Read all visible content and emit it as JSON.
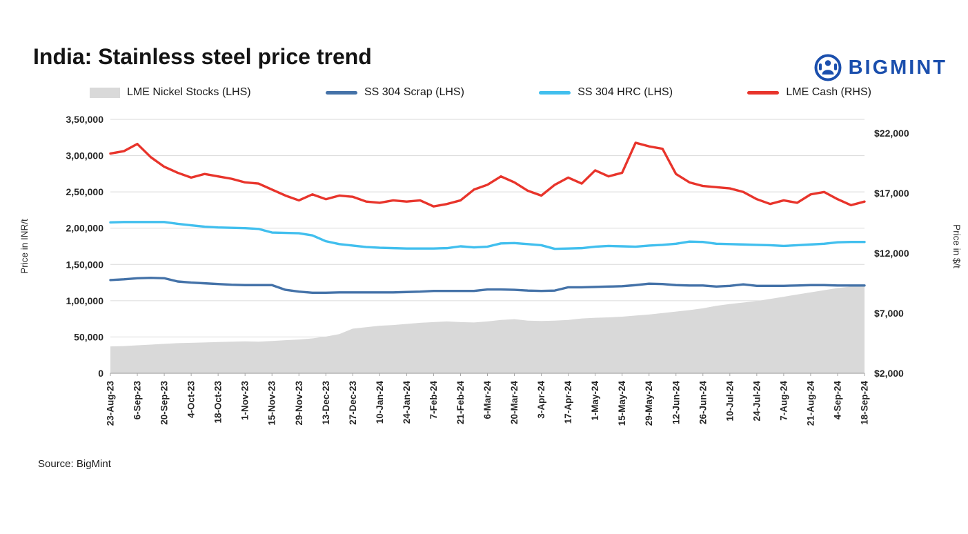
{
  "brand": {
    "name": "BIGMINT",
    "color": "#1b4fad",
    "icon": "bigmint-figure-icon"
  },
  "page_title": "India: Stainless steel price trend",
  "source_note": "Source: BigMint",
  "legend": {
    "items": [
      {
        "label": "LME Nickel Stocks (LHS)",
        "swatch": "area",
        "color": "#d9d9d9"
      },
      {
        "label": "SS 304 Scrap (LHS)",
        "swatch": "line",
        "color": "#4472a8"
      },
      {
        "label": "SS 304 HRC (LHS)",
        "swatch": "line",
        "color": "#41bfee"
      },
      {
        "label": "LME Cash (RHS)",
        "swatch": "line",
        "color": "#e8342b"
      }
    ]
  },
  "left_axis": {
    "title": "Price in INR/t",
    "ticks": [
      "0",
      "50,000",
      "1,00,000",
      "1,50,000",
      "2,00,000",
      "2,50,000",
      "3,00,000",
      "3,50,000"
    ],
    "tick_values": [
      0,
      50000,
      100000,
      150000,
      200000,
      250000,
      300000,
      350000
    ]
  },
  "right_axis": {
    "title": "Price in $/t",
    "ticks": [
      "$2,000",
      "$7,000",
      "$12,000",
      "$17,000",
      "$22,000"
    ],
    "tick_values": [
      2000,
      7000,
      12000,
      17000,
      22000
    ]
  },
  "chart_data": {
    "type": "line+area",
    "title": "India: Stainless steel price trend",
    "grid": true,
    "legend_position": "top",
    "left_ylim": [
      0,
      350000
    ],
    "right_ylim": [
      2000,
      23150
    ],
    "label_every": 2,
    "x": [
      "23-Aug-23",
      "30-Aug-23",
      "6-Sep-23",
      "13-Sep-23",
      "20-Sep-23",
      "27-Sep-23",
      "4-Oct-23",
      "11-Oct-23",
      "18-Oct-23",
      "25-Oct-23",
      "1-Nov-23",
      "8-Nov-23",
      "15-Nov-23",
      "22-Nov-23",
      "29-Nov-23",
      "6-Dec-23",
      "13-Dec-23",
      "20-Dec-23",
      "27-Dec-23",
      "3-Jan-24",
      "10-Jan-24",
      "17-Jan-24",
      "24-Jan-24",
      "31-Jan-24",
      "7-Feb-24",
      "14-Feb-24",
      "21-Feb-24",
      "28-Feb-24",
      "6-Mar-24",
      "13-Mar-24",
      "20-Mar-24",
      "27-Mar-24",
      "3-Apr-24",
      "10-Apr-24",
      "17-Apr-24",
      "24-Apr-24",
      "1-May-24",
      "8-May-24",
      "15-May-24",
      "22-May-24",
      "29-May-24",
      "5-Jun-24",
      "12-Jun-24",
      "19-Jun-24",
      "26-Jun-24",
      "3-Jul-24",
      "10-Jul-24",
      "17-Jul-24",
      "24-Jul-24",
      "31-Jul-24",
      "7-Aug-24",
      "14-Aug-24",
      "21-Aug-24",
      "28-Aug-24",
      "4-Sep-24",
      "11-Sep-24",
      "18-Sep-24"
    ],
    "series": [
      {
        "name": "LME Nickel Stocks (LHS)",
        "axis": "left",
        "style": "area",
        "color": "#d9d9d9",
        "values": [
          37000,
          37500,
          38500,
          39500,
          40500,
          41500,
          42000,
          42500,
          43000,
          43500,
          44000,
          43500,
          44500,
          45500,
          46500,
          48000,
          50500,
          54000,
          61500,
          63500,
          65500,
          66500,
          68000,
          69500,
          70500,
          71500,
          70500,
          70000,
          71500,
          73500,
          74500,
          72500,
          72000,
          72500,
          73500,
          75500,
          76500,
          77000,
          78000,
          79500,
          81000,
          83000,
          85000,
          87000,
          89500,
          93000,
          95500,
          97500,
          99500,
          102500,
          105500,
          108500,
          111500,
          114500,
          117500,
          119500,
          121500
        ]
      },
      {
        "name": "SS 304 Scrap (LHS)",
        "axis": "left",
        "style": "line",
        "color": "#4472a8",
        "values": [
          128500,
          129500,
          131000,
          131500,
          131000,
          126500,
          125000,
          124000,
          123000,
          122000,
          121500,
          121500,
          121500,
          115000,
          112500,
          111000,
          111000,
          111500,
          111500,
          111500,
          111500,
          111500,
          112000,
          112500,
          113500,
          113500,
          113500,
          113500,
          115500,
          115500,
          115000,
          114000,
          113500,
          114000,
          118500,
          118500,
          119000,
          119500,
          120000,
          121500,
          123500,
          123000,
          121500,
          121000,
          121000,
          119500,
          120500,
          122500,
          120500,
          120500,
          120500,
          121000,
          121500,
          121500,
          121000,
          121000,
          121000
        ]
      },
      {
        "name": "SS 304 HRC (LHS)",
        "axis": "left",
        "style": "line",
        "color": "#41bfee",
        "values": [
          208000,
          208500,
          208500,
          208500,
          208500,
          206000,
          204000,
          202000,
          201000,
          200500,
          200000,
          199000,
          194000,
          193500,
          193000,
          190000,
          182000,
          178000,
          176000,
          174000,
          173000,
          172500,
          172000,
          172000,
          172000,
          172500,
          175000,
          173500,
          174500,
          179000,
          179500,
          178000,
          176500,
          171500,
          172000,
          172500,
          174500,
          175500,
          175000,
          174500,
          176000,
          177000,
          178500,
          181500,
          181000,
          178500,
          178000,
          177500,
          177000,
          176500,
          175500,
          176500,
          177500,
          178500,
          180500,
          181000,
          181000
        ]
      },
      {
        "name": "LME Cash (RHS)",
        "axis": "right",
        "style": "line",
        "color": "#e8342b",
        "values": [
          20300,
          20500,
          21100,
          20000,
          19200,
          18700,
          18300,
          18600,
          18400,
          18200,
          17900,
          17800,
          17300,
          16800,
          16400,
          16900,
          16500,
          16800,
          16700,
          16300,
          16200,
          16400,
          16300,
          16400,
          15900,
          16100,
          16400,
          17300,
          17700,
          18400,
          17900,
          17200,
          16800,
          17700,
          18300,
          17800,
          18900,
          18400,
          18700,
          21200,
          20900,
          20700,
          18600,
          17900,
          17600,
          17500,
          17400,
          17100,
          16500,
          16100,
          16400,
          16200,
          16900,
          17100,
          16500,
          16000,
          16300
        ]
      }
    ]
  }
}
